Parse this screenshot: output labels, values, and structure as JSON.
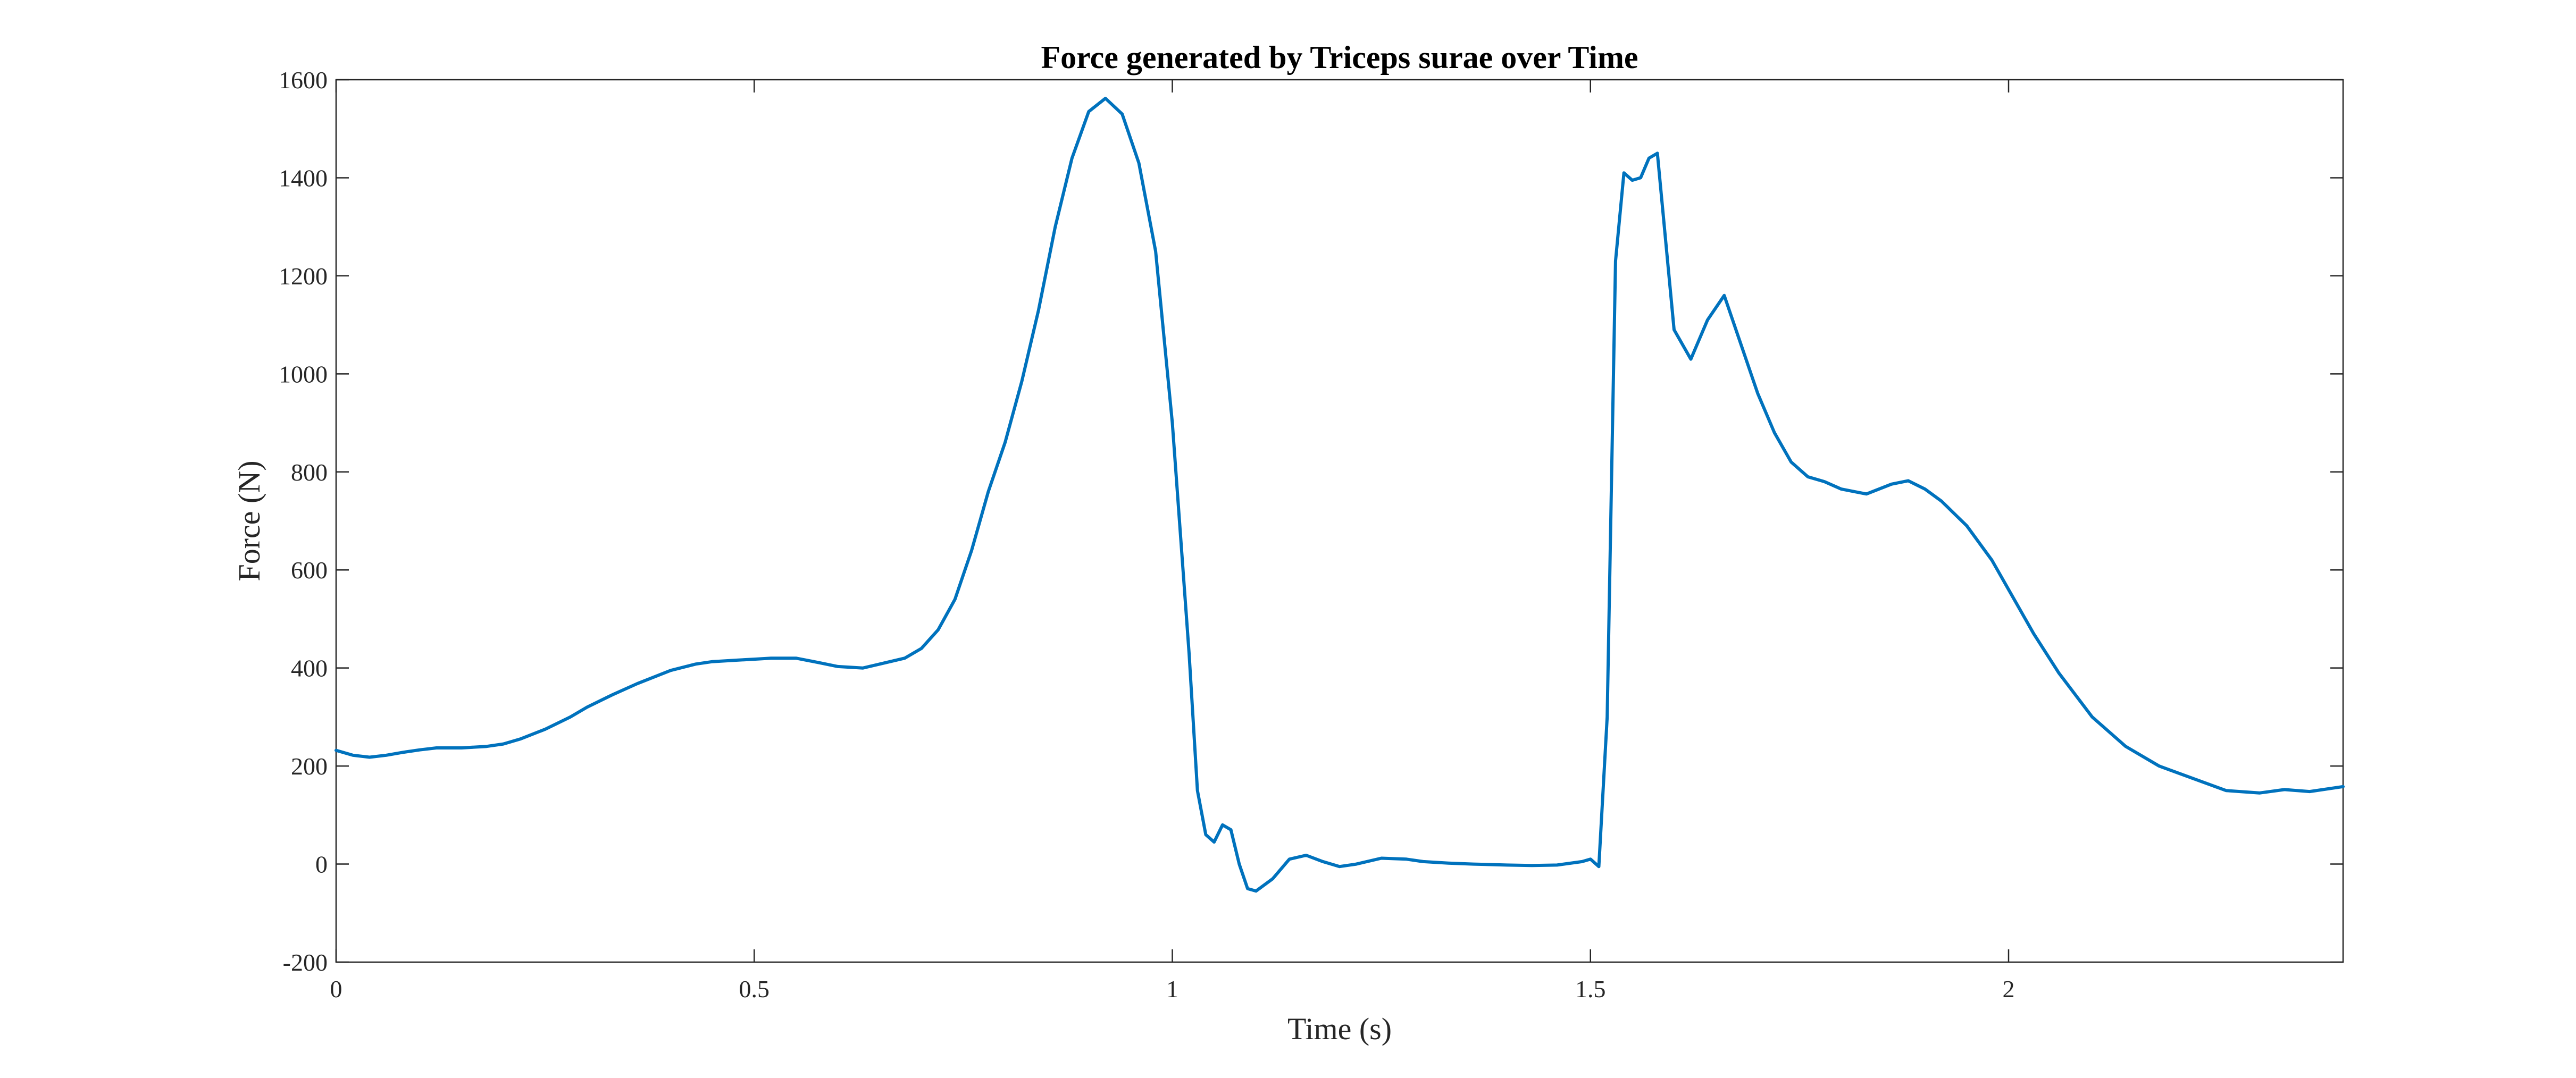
{
  "chart_data": {
    "type": "line",
    "title": "Force generated by Triceps surae over Time",
    "xlabel": "Time (s)",
    "ylabel": "Force (N)",
    "xlim": [
      0,
      2.4
    ],
    "ylim": [
      -200,
      1600
    ],
    "xticks": [
      0,
      0.5,
      1,
      1.5,
      2
    ],
    "xtick_labels": [
      "0",
      "0.5",
      "1",
      "1.5",
      "2"
    ],
    "yticks": [
      -200,
      0,
      200,
      400,
      600,
      800,
      1000,
      1200,
      1400,
      1600
    ],
    "ytick_labels": [
      "-200",
      "0",
      "200",
      "400",
      "600",
      "800",
      "1000",
      "1200",
      "1400",
      "1600"
    ],
    "grid": false,
    "box": true,
    "line_color": "#0072BD",
    "series": [
      {
        "x": [
          0,
          0.02,
          0.04,
          0.06,
          0.08,
          0.1,
          0.12,
          0.15,
          0.18,
          0.2,
          0.22,
          0.25,
          0.28,
          0.3,
          0.33,
          0.36,
          0.4,
          0.43,
          0.45,
          0.48,
          0.5,
          0.52,
          0.55,
          0.58,
          0.6,
          0.63,
          0.65,
          0.68,
          0.7,
          0.72,
          0.74,
          0.76,
          0.78,
          0.8,
          0.82,
          0.84,
          0.86,
          0.88,
          0.9,
          0.92,
          0.94,
          0.96,
          0.98,
          1.0,
          1.02,
          1.03,
          1.04,
          1.05,
          1.06,
          1.07,
          1.08,
          1.09,
          1.1,
          1.12,
          1.14,
          1.16,
          1.18,
          1.2,
          1.22,
          1.25,
          1.28,
          1.3,
          1.33,
          1.36,
          1.4,
          1.43,
          1.46,
          1.49,
          1.5,
          1.51,
          1.52,
          1.53,
          1.54,
          1.55,
          1.56,
          1.57,
          1.58,
          1.6,
          1.62,
          1.64,
          1.66,
          1.68,
          1.7,
          1.72,
          1.74,
          1.76,
          1.78,
          1.8,
          1.83,
          1.86,
          1.88,
          1.9,
          1.92,
          1.95,
          1.98,
          2.0,
          2.03,
          2.06,
          2.1,
          2.14,
          2.18,
          2.22,
          2.26,
          2.3,
          2.33,
          2.36,
          2.4
        ],
        "y": [
          232,
          222,
          218,
          222,
          228,
          233,
          237,
          237,
          240,
          245,
          255,
          275,
          300,
          320,
          345,
          368,
          395,
          408,
          413,
          416,
          418,
          420,
          420,
          410,
          403,
          400,
          408,
          420,
          440,
          478,
          540,
          640,
          760,
          860,
          985,
          1130,
          1300,
          1440,
          1535,
          1562,
          1530,
          1430,
          1250,
          900,
          430,
          150,
          60,
          45,
          80,
          70,
          0,
          -50,
          -55,
          -30,
          10,
          18,
          5,
          -5,
          0,
          12,
          10,
          5,
          2,
          0,
          -2,
          -3,
          -2,
          5,
          10,
          -5,
          300,
          1230,
          1410,
          1395,
          1400,
          1440,
          1450,
          1090,
          1030,
          1110,
          1160,
          1060,
          960,
          880,
          820,
          790,
          780,
          765,
          755,
          775,
          782,
          765,
          740,
          690,
          620,
          560,
          470,
          390,
          300,
          240,
          200,
          175,
          150,
          145,
          152,
          148,
          158
        ]
      }
    ]
  }
}
